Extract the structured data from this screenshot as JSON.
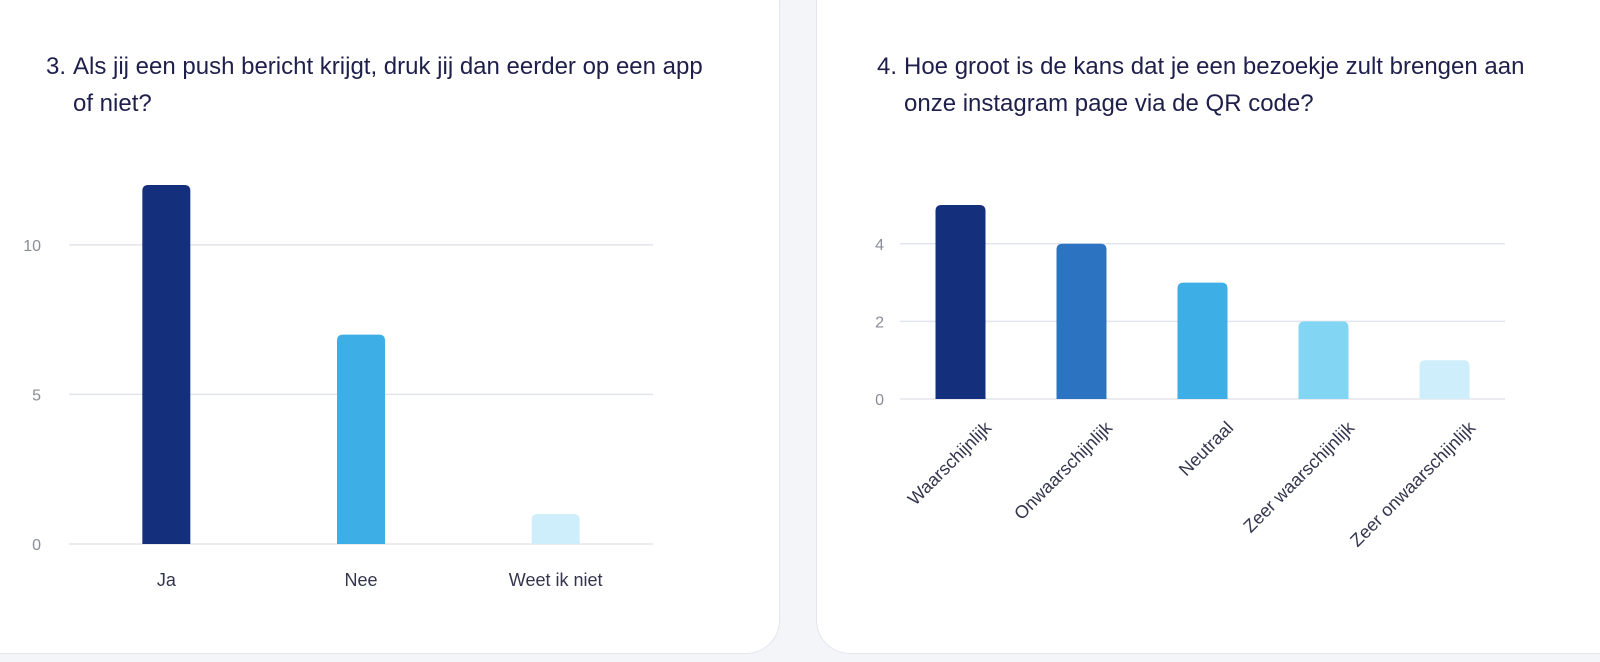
{
  "charts": [
    {
      "number": "3.",
      "question": "Als jij een push bericht krijgt, druk jij dan eerder op een app of niet?"
    },
    {
      "number": "4.",
      "question": "Hoe groot is de kans dat je een bezoekje zult brengen aan onze instagram page via de QR code?"
    }
  ],
  "chart_data": [
    {
      "type": "bar",
      "categories": [
        "Ja",
        "Nee",
        "Weet ik niet"
      ],
      "values": [
        12,
        7,
        1
      ],
      "ylim": [
        0,
        12
      ],
      "yticks": [
        0,
        5,
        10
      ],
      "grid": true,
      "colors": [
        "#142f7c",
        "#3eaee6",
        "#cdeefa"
      ]
    },
    {
      "type": "bar",
      "categories": [
        "Waarschijnlijk",
        "Onwaarschijnlijk",
        "Neutraal",
        "Zeer waarschijnlijk",
        "Zeer onwaarschijnlijk"
      ],
      "values": [
        5,
        4,
        3,
        2,
        1
      ],
      "ylim": [
        0,
        5
      ],
      "yticks": [
        0,
        2,
        4
      ],
      "grid": true,
      "colors": [
        "#142f7c",
        "#2c74c2",
        "#3eaee6",
        "#82d6f3",
        "#cdeefa"
      ]
    }
  ]
}
